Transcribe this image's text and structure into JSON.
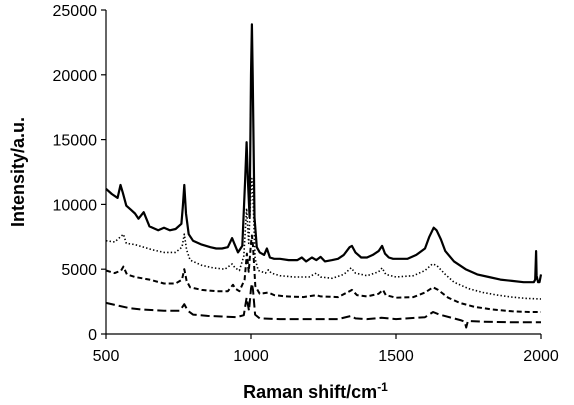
{
  "chart_data": {
    "type": "line",
    "xlabel": "Raman shift/cm",
    "xlabel_superscript": "-1",
    "ylabel": "Intensity/a.u.",
    "xlim": [
      500,
      2000
    ],
    "ylim": [
      0,
      25000
    ],
    "x_ticks": [
      500,
      1000,
      1500,
      2000
    ],
    "y_ticks": [
      0,
      5000,
      10000,
      15000,
      20000,
      25000
    ],
    "grid": false,
    "series": [
      {
        "style": "solid",
        "points": [
          [
            500,
            11200
          ],
          [
            520,
            10800
          ],
          [
            540,
            10500
          ],
          [
            550,
            11500
          ],
          [
            558,
            10900
          ],
          [
            570,
            9900
          ],
          [
            585,
            9600
          ],
          [
            600,
            9300
          ],
          [
            612,
            8900
          ],
          [
            630,
            9400
          ],
          [
            650,
            8300
          ],
          [
            680,
            8000
          ],
          [
            700,
            8200
          ],
          [
            720,
            8000
          ],
          [
            740,
            8100
          ],
          [
            760,
            8500
          ],
          [
            765,
            9800
          ],
          [
            770,
            11500
          ],
          [
            776,
            9300
          ],
          [
            785,
            7700
          ],
          [
            800,
            7200
          ],
          [
            830,
            6900
          ],
          [
            860,
            6700
          ],
          [
            880,
            6600
          ],
          [
            900,
            6600
          ],
          [
            920,
            6700
          ],
          [
            935,
            7400
          ],
          [
            942,
            7000
          ],
          [
            955,
            6300
          ],
          [
            970,
            6800
          ],
          [
            980,
            12000
          ],
          [
            985,
            14800
          ],
          [
            990,
            11500
          ],
          [
            995,
            9000
          ],
          [
            1000,
            20000
          ],
          [
            1003,
            23900
          ],
          [
            1006,
            20000
          ],
          [
            1012,
            9000
          ],
          [
            1020,
            6700
          ],
          [
            1030,
            6300
          ],
          [
            1045,
            6100
          ],
          [
            1055,
            6600
          ],
          [
            1065,
            5900
          ],
          [
            1080,
            5800
          ],
          [
            1100,
            5800
          ],
          [
            1130,
            5700
          ],
          [
            1160,
            5700
          ],
          [
            1175,
            5900
          ],
          [
            1190,
            5600
          ],
          [
            1210,
            5900
          ],
          [
            1225,
            5700
          ],
          [
            1240,
            5950
          ],
          [
            1255,
            5600
          ],
          [
            1280,
            5700
          ],
          [
            1300,
            5800
          ],
          [
            1320,
            6100
          ],
          [
            1340,
            6700
          ],
          [
            1348,
            6800
          ],
          [
            1360,
            6300
          ],
          [
            1380,
            5900
          ],
          [
            1400,
            5900
          ],
          [
            1420,
            6100
          ],
          [
            1440,
            6400
          ],
          [
            1452,
            6800
          ],
          [
            1462,
            6200
          ],
          [
            1475,
            5900
          ],
          [
            1490,
            5800
          ],
          [
            1510,
            5800
          ],
          [
            1540,
            5800
          ],
          [
            1570,
            6100
          ],
          [
            1600,
            6600
          ],
          [
            1615,
            7500
          ],
          [
            1630,
            8200
          ],
          [
            1640,
            8000
          ],
          [
            1655,
            7300
          ],
          [
            1670,
            6400
          ],
          [
            1700,
            5600
          ],
          [
            1740,
            5000
          ],
          [
            1780,
            4600
          ],
          [
            1820,
            4400
          ],
          [
            1860,
            4200
          ],
          [
            1900,
            4100
          ],
          [
            1940,
            4000
          ],
          [
            1975,
            4000
          ],
          [
            1980,
            4200
          ],
          [
            1983,
            6400
          ],
          [
            1985,
            4500
          ],
          [
            1990,
            4000
          ],
          [
            1995,
            4000
          ],
          [
            2000,
            4600
          ]
        ]
      },
      {
        "style": "dotted",
        "points": [
          [
            500,
            7200
          ],
          [
            530,
            7100
          ],
          [
            550,
            7500
          ],
          [
            560,
            7700
          ],
          [
            570,
            7000
          ],
          [
            600,
            6900
          ],
          [
            630,
            6700
          ],
          [
            660,
            6500
          ],
          [
            700,
            6300
          ],
          [
            740,
            6300
          ],
          [
            762,
            6700
          ],
          [
            770,
            7700
          ],
          [
            778,
            6500
          ],
          [
            790,
            5700
          ],
          [
            830,
            5300
          ],
          [
            870,
            5100
          ],
          [
            910,
            5000
          ],
          [
            935,
            5400
          ],
          [
            945,
            5100
          ],
          [
            960,
            4900
          ],
          [
            975,
            6000
          ],
          [
            985,
            9700
          ],
          [
            992,
            7000
          ],
          [
            1000,
            11000
          ],
          [
            1003,
            12000
          ],
          [
            1007,
            10500
          ],
          [
            1014,
            5800
          ],
          [
            1025,
            4900
          ],
          [
            1050,
            4700
          ],
          [
            1060,
            4950
          ],
          [
            1070,
            4700
          ],
          [
            1100,
            4500
          ],
          [
            1150,
            4400
          ],
          [
            1200,
            4400
          ],
          [
            1225,
            4700
          ],
          [
            1240,
            4400
          ],
          [
            1280,
            4300
          ],
          [
            1320,
            4600
          ],
          [
            1345,
            5100
          ],
          [
            1360,
            4700
          ],
          [
            1400,
            4500
          ],
          [
            1440,
            4800
          ],
          [
            1452,
            5100
          ],
          [
            1465,
            4600
          ],
          [
            1500,
            4400
          ],
          [
            1560,
            4500
          ],
          [
            1600,
            4900
          ],
          [
            1625,
            5400
          ],
          [
            1640,
            5300
          ],
          [
            1670,
            4600
          ],
          [
            1700,
            4000
          ],
          [
            1750,
            3500
          ],
          [
            1800,
            3200
          ],
          [
            1850,
            3000
          ],
          [
            1900,
            2850
          ],
          [
            1950,
            2750
          ],
          [
            2000,
            2700
          ]
        ]
      },
      {
        "style": "dashed",
        "points": [
          [
            500,
            4900
          ],
          [
            530,
            4700
          ],
          [
            552,
            4900
          ],
          [
            560,
            5200
          ],
          [
            572,
            4600
          ],
          [
            600,
            4400
          ],
          [
            650,
            4200
          ],
          [
            700,
            3900
          ],
          [
            740,
            3900
          ],
          [
            762,
            4200
          ],
          [
            770,
            5000
          ],
          [
            778,
            4100
          ],
          [
            790,
            3600
          ],
          [
            830,
            3400
          ],
          [
            880,
            3300
          ],
          [
            920,
            3300
          ],
          [
            938,
            3800
          ],
          [
            946,
            3500
          ],
          [
            960,
            3300
          ],
          [
            978,
            4200
          ],
          [
            986,
            6200
          ],
          [
            992,
            4800
          ],
          [
            1000,
            7000
          ],
          [
            1003,
            7600
          ],
          [
            1007,
            6800
          ],
          [
            1015,
            3700
          ],
          [
            1030,
            3100
          ],
          [
            1060,
            3200
          ],
          [
            1080,
            3000
          ],
          [
            1120,
            2900
          ],
          [
            1180,
            2850
          ],
          [
            1225,
            3000
          ],
          [
            1240,
            2900
          ],
          [
            1300,
            2850
          ],
          [
            1340,
            3300
          ],
          [
            1348,
            3400
          ],
          [
            1365,
            3000
          ],
          [
            1400,
            2900
          ],
          [
            1440,
            3100
          ],
          [
            1455,
            3400
          ],
          [
            1465,
            3000
          ],
          [
            1500,
            2800
          ],
          [
            1560,
            2850
          ],
          [
            1600,
            3200
          ],
          [
            1628,
            3600
          ],
          [
            1645,
            3400
          ],
          [
            1680,
            2800
          ],
          [
            1720,
            2400
          ],
          [
            1770,
            2100
          ],
          [
            1830,
            1900
          ],
          [
            1900,
            1750
          ],
          [
            1960,
            1700
          ],
          [
            2000,
            1700
          ]
        ]
      },
      {
        "style": "long-dashed",
        "points": [
          [
            500,
            2400
          ],
          [
            540,
            2200
          ],
          [
            580,
            2000
          ],
          [
            620,
            1900
          ],
          [
            700,
            1800
          ],
          [
            755,
            1800
          ],
          [
            770,
            2300
          ],
          [
            782,
            1800
          ],
          [
            800,
            1500
          ],
          [
            850,
            1400
          ],
          [
            900,
            1350
          ],
          [
            950,
            1300
          ],
          [
            975,
            1450
          ],
          [
            985,
            2800
          ],
          [
            993,
            1800
          ],
          [
            1000,
            3500
          ],
          [
            1003,
            3900
          ],
          [
            1007,
            3400
          ],
          [
            1014,
            1500
          ],
          [
            1030,
            1200
          ],
          [
            1100,
            1150
          ],
          [
            1200,
            1150
          ],
          [
            1300,
            1150
          ],
          [
            1345,
            1400
          ],
          [
            1360,
            1200
          ],
          [
            1400,
            1150
          ],
          [
            1450,
            1250
          ],
          [
            1500,
            1150
          ],
          [
            1600,
            1300
          ],
          [
            1628,
            1700
          ],
          [
            1650,
            1500
          ],
          [
            1700,
            1200
          ],
          [
            1725,
            1050
          ],
          [
            1737,
            950
          ],
          [
            1742,
            500
          ],
          [
            1748,
            1000
          ],
          [
            1800,
            950
          ],
          [
            1900,
            900
          ],
          [
            2000,
            900
          ]
        ]
      }
    ]
  }
}
